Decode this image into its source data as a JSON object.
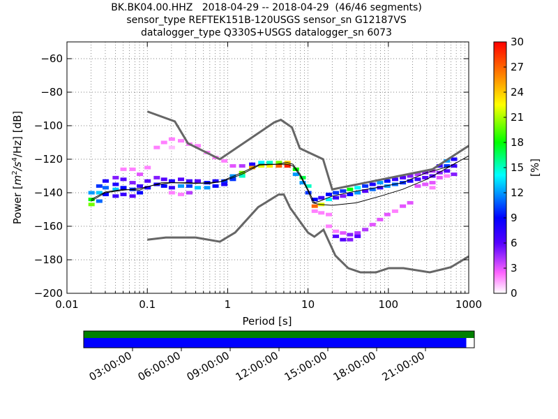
{
  "title_lines": [
    "BK.BK04.00.HHZ   2018-04-29 -- 2018-04-29  (46/46 segments)",
    "sensor_type REFTEK151B-120USGS sensor_sn G12187VS",
    "datalogger_type Q330S+USGS datalogger_sn 6073"
  ],
  "chart_data": {
    "type": "heatmap",
    "xlabel": "Period [s]",
    "ylabel": "Power [m²/s⁴/Hz] [dB]",
    "ylabel_parts": {
      "pre": "Power [",
      "unit": "m",
      "exp1": "2",
      "mid": "/s",
      "exp2": "4",
      "post": "/Hz] [dB]"
    },
    "x_scale": "log",
    "xlim": [
      0.01,
      1000
    ],
    "ylim": [
      -200,
      -50
    ],
    "x_ticks": [
      0.01,
      0.1,
      1,
      10,
      100,
      1000
    ],
    "x_tick_labels": [
      "0.01",
      "0.1",
      "1",
      "10",
      "100",
      "1000"
    ],
    "y_ticks": [
      -200,
      -180,
      -160,
      -140,
      -120,
      -100,
      -80,
      -60
    ],
    "y_tick_labels": [
      "−200",
      "−180",
      "−160",
      "−140",
      "−120",
      "−100",
      "−80",
      "−60"
    ],
    "grid": true,
    "colorbar": {
      "label": "[%]",
      "range": [
        0,
        30
      ],
      "ticks": [
        0,
        3,
        6,
        9,
        12,
        15,
        18,
        21,
        24,
        27,
        30
      ],
      "tick_labels": [
        "0",
        "3",
        "6",
        "9",
        "12",
        "15",
        "18",
        "21",
        "24",
        "27",
        "30"
      ]
    },
    "noise_models": [
      {
        "points": [
          [
            0.1,
            -91.5
          ],
          [
            0.22,
            -97.4
          ],
          [
            0.32,
            -110.5
          ],
          [
            0.8,
            -120
          ],
          [
            3.8,
            -98
          ],
          [
            4.6,
            -96.5
          ],
          [
            6.3,
            -101
          ],
          [
            7.9,
            -113.5
          ],
          [
            15.4,
            -120
          ],
          [
            20,
            -138
          ],
          [
            354,
            -126
          ],
          [
            1000,
            -112
          ]
        ]
      },
      {
        "points": [
          [
            0.1,
            -168
          ],
          [
            0.17,
            -166.7
          ],
          [
            0.4,
            -166.7
          ],
          [
            0.8,
            -169.2
          ],
          [
            1.24,
            -163.7
          ],
          [
            2.4,
            -148.6
          ],
          [
            4.3,
            -141.1
          ],
          [
            5,
            -141.1
          ],
          [
            6,
            -149
          ],
          [
            10,
            -163.8
          ],
          [
            12,
            -166.2
          ],
          [
            15.6,
            -162.1
          ],
          [
            21.9,
            -177.5
          ],
          [
            31.6,
            -185
          ],
          [
            45,
            -187.5
          ],
          [
            70,
            -187.5
          ],
          [
            101,
            -185
          ],
          [
            154,
            -185
          ],
          [
            328,
            -187.5
          ],
          [
            600,
            -184.4
          ],
          [
            1000,
            -178
          ]
        ]
      }
    ],
    "mean_curve": {
      "color": "#000000",
      "points": [
        [
          0.02,
          -144
        ],
        [
          0.03,
          -139.5
        ],
        [
          0.05,
          -138
        ],
        [
          0.08,
          -138.5
        ],
        [
          0.1,
          -136.5
        ],
        [
          0.15,
          -134
        ],
        [
          0.3,
          -134
        ],
        [
          0.6,
          -134.5
        ],
        [
          0.9,
          -133
        ],
        [
          1.5,
          -129
        ],
        [
          2.5,
          -123.5
        ],
        [
          4,
          -123
        ],
        [
          5.5,
          -123
        ],
        [
          6.5,
          -124
        ],
        [
          8,
          -130
        ],
        [
          10,
          -139
        ],
        [
          11.5,
          -146
        ],
        [
          14,
          -147
        ],
        [
          20,
          -147.5
        ],
        [
          40,
          -146
        ],
        [
          80,
          -142
        ],
        [
          150,
          -138
        ],
        [
          300,
          -132
        ],
        [
          600,
          -124
        ],
        [
          1000,
          -118
        ]
      ]
    },
    "mode_curve": {
      "color": "#000000",
      "points": [
        [
          0.02,
          -145
        ],
        [
          0.03,
          -140
        ],
        [
          0.05,
          -138.5
        ],
        [
          0.08,
          -137.5
        ],
        [
          0.12,
          -135.5
        ],
        [
          0.2,
          -134
        ],
        [
          0.4,
          -134.5
        ],
        [
          0.8,
          -133.5
        ],
        [
          1.5,
          -128
        ],
        [
          2.5,
          -123
        ],
        [
          4,
          -123
        ],
        [
          5.5,
          -122
        ],
        [
          6.5,
          -123
        ],
        [
          8,
          -129
        ],
        [
          10,
          -138
        ],
        [
          12,
          -146
        ],
        [
          14,
          -145
        ],
        [
          20,
          -142
        ],
        [
          40,
          -139
        ],
        [
          80,
          -136.5
        ],
        [
          150,
          -134
        ],
        [
          300,
          -128
        ],
        [
          600,
          -124
        ],
        [
          700,
          -122
        ]
      ]
    },
    "pdf_cells": [
      {
        "x": 0.02,
        "y": -140,
        "p": 12
      },
      {
        "x": 0.02,
        "y": -144,
        "p": 18
      },
      {
        "x": 0.02,
        "y": -147,
        "p": 20
      },
      {
        "x": 0.025,
        "y": -136,
        "p": 10
      },
      {
        "x": 0.025,
        "y": -140,
        "p": 13
      },
      {
        "x": 0.025,
        "y": -145,
        "p": 11
      },
      {
        "x": 0.03,
        "y": -133,
        "p": 8
      },
      {
        "x": 0.03,
        "y": -137,
        "p": 11
      },
      {
        "x": 0.03,
        "y": -141,
        "p": 9
      },
      {
        "x": 0.04,
        "y": -131,
        "p": 5
      },
      {
        "x": 0.04,
        "y": -135,
        "p": 8
      },
      {
        "x": 0.04,
        "y": -138,
        "p": 13
      },
      {
        "x": 0.04,
        "y": -142,
        "p": 7
      },
      {
        "x": 0.05,
        "y": -126,
        "p": 2
      },
      {
        "x": 0.05,
        "y": -132,
        "p": 6
      },
      {
        "x": 0.05,
        "y": -137,
        "p": 9
      },
      {
        "x": 0.05,
        "y": -141,
        "p": 7
      },
      {
        "x": 0.065,
        "y": -126,
        "p": 2
      },
      {
        "x": 0.065,
        "y": -134,
        "p": 5
      },
      {
        "x": 0.065,
        "y": -138,
        "p": 10
      },
      {
        "x": 0.065,
        "y": -142,
        "p": 6
      },
      {
        "x": 0.08,
        "y": -129,
        "p": 3
      },
      {
        "x": 0.08,
        "y": -136,
        "p": 7
      },
      {
        "x": 0.08,
        "y": -140,
        "p": 9
      },
      {
        "x": 0.1,
        "y": -125,
        "p": 2
      },
      {
        "x": 0.1,
        "y": -133,
        "p": 6
      },
      {
        "x": 0.1,
        "y": -137,
        "p": 8
      },
      {
        "x": 0.13,
        "y": -113,
        "p": 2
      },
      {
        "x": 0.13,
        "y": -131,
        "p": 5
      },
      {
        "x": 0.13,
        "y": -135,
        "p": 8
      },
      {
        "x": 0.16,
        "y": -110,
        "p": 2
      },
      {
        "x": 0.16,
        "y": -132,
        "p": 6
      },
      {
        "x": 0.16,
        "y": -136,
        "p": 9
      },
      {
        "x": 0.2,
        "y": -108,
        "p": 2
      },
      {
        "x": 0.2,
        "y": -113,
        "p": 1
      },
      {
        "x": 0.2,
        "y": -133,
        "p": 8
      },
      {
        "x": 0.2,
        "y": -137,
        "p": 7
      },
      {
        "x": 0.2,
        "y": -140,
        "p": 2
      },
      {
        "x": 0.26,
        "y": -109,
        "p": 2
      },
      {
        "x": 0.26,
        "y": -132,
        "p": 6
      },
      {
        "x": 0.26,
        "y": -136,
        "p": 12
      },
      {
        "x": 0.26,
        "y": -141,
        "p": 2
      },
      {
        "x": 0.33,
        "y": -111,
        "p": 2
      },
      {
        "x": 0.33,
        "y": -133,
        "p": 7
      },
      {
        "x": 0.33,
        "y": -136,
        "p": 10
      },
      {
        "x": 0.33,
        "y": -140,
        "p": 4
      },
      {
        "x": 0.42,
        "y": -112,
        "p": 2
      },
      {
        "x": 0.42,
        "y": -133,
        "p": 6
      },
      {
        "x": 0.42,
        "y": -137,
        "p": 13
      },
      {
        "x": 0.55,
        "y": -116,
        "p": 2
      },
      {
        "x": 0.55,
        "y": -134,
        "p": 9
      },
      {
        "x": 0.55,
        "y": -137,
        "p": 12
      },
      {
        "x": 0.7,
        "y": -119,
        "p": 2
      },
      {
        "x": 0.7,
        "y": -133,
        "p": 8
      },
      {
        "x": 0.7,
        "y": -136,
        "p": 9
      },
      {
        "x": 0.9,
        "y": -121,
        "p": 2
      },
      {
        "x": 0.9,
        "y": -133,
        "p": 10
      },
      {
        "x": 0.9,
        "y": -135,
        "p": 8
      },
      {
        "x": 1.15,
        "y": -124,
        "p": 3
      },
      {
        "x": 1.15,
        "y": -130,
        "p": 12
      },
      {
        "x": 1.15,
        "y": -132,
        "p": 10
      },
      {
        "x": 1.5,
        "y": -124,
        "p": 4
      },
      {
        "x": 1.5,
        "y": -128,
        "p": 20
      },
      {
        "x": 1.5,
        "y": -130,
        "p": 15
      },
      {
        "x": 2,
        "y": -123,
        "p": 8
      },
      {
        "x": 2,
        "y": -125,
        "p": 25
      },
      {
        "x": 2.6,
        "y": -122,
        "p": 14
      },
      {
        "x": 2.6,
        "y": -124,
        "p": 22
      },
      {
        "x": 3.3,
        "y": -122,
        "p": 15
      },
      {
        "x": 3.3,
        "y": -124,
        "p": 23
      },
      {
        "x": 4.3,
        "y": -122,
        "p": 20
      },
      {
        "x": 4.3,
        "y": -124,
        "p": 27
      },
      {
        "x": 5.5,
        "y": -122,
        "p": 24
      },
      {
        "x": 5.5,
        "y": -124,
        "p": 29
      },
      {
        "x": 7,
        "y": -126,
        "p": 18
      },
      {
        "x": 7,
        "y": -129,
        "p": 12
      },
      {
        "x": 8.5,
        "y": -131,
        "p": 17
      },
      {
        "x": 8.5,
        "y": -134,
        "p": 12
      },
      {
        "x": 10,
        "y": -136,
        "p": 15
      },
      {
        "x": 10,
        "y": -140,
        "p": 10
      },
      {
        "x": 12,
        "y": -144,
        "p": 9
      },
      {
        "x": 12,
        "y": -148,
        "p": 27
      },
      {
        "x": 12,
        "y": -151,
        "p": 2
      },
      {
        "x": 14.5,
        "y": -143,
        "p": 7
      },
      {
        "x": 14.5,
        "y": -147,
        "p": 22
      },
      {
        "x": 14.5,
        "y": -152,
        "p": 2
      },
      {
        "x": 18,
        "y": -141,
        "p": 9
      },
      {
        "x": 18,
        "y": -144,
        "p": 14
      },
      {
        "x": 18,
        "y": -153,
        "p": 2
      },
      {
        "x": 18,
        "y": -160,
        "p": 2
      },
      {
        "x": 22,
        "y": -140,
        "p": 10
      },
      {
        "x": 22,
        "y": -143,
        "p": 7
      },
      {
        "x": 22,
        "y": -163,
        "p": 2
      },
      {
        "x": 22,
        "y": -166,
        "p": 6
      },
      {
        "x": 27,
        "y": -139,
        "p": 10
      },
      {
        "x": 27,
        "y": -142,
        "p": 5
      },
      {
        "x": 27,
        "y": -164,
        "p": 3
      },
      {
        "x": 27,
        "y": -168,
        "p": 6
      },
      {
        "x": 33,
        "y": -138,
        "p": 18
      },
      {
        "x": 33,
        "y": -141,
        "p": 9
      },
      {
        "x": 33,
        "y": -165,
        "p": 5
      },
      {
        "x": 33,
        "y": -168,
        "p": 5
      },
      {
        "x": 41,
        "y": -137,
        "p": 14
      },
      {
        "x": 41,
        "y": -140,
        "p": 12
      },
      {
        "x": 41,
        "y": -164,
        "p": 4
      },
      {
        "x": 41,
        "y": -166,
        "p": 6
      },
      {
        "x": 51,
        "y": -136,
        "p": 10
      },
      {
        "x": 51,
        "y": -139,
        "p": 6
      },
      {
        "x": 51,
        "y": -162,
        "p": 4
      },
      {
        "x": 63,
        "y": -135,
        "p": 8
      },
      {
        "x": 63,
        "y": -138,
        "p": 11
      },
      {
        "x": 63,
        "y": -159,
        "p": 3
      },
      {
        "x": 78,
        "y": -134,
        "p": 12
      },
      {
        "x": 78,
        "y": -137,
        "p": 7
      },
      {
        "x": 78,
        "y": -156,
        "p": 3
      },
      {
        "x": 96,
        "y": -133,
        "p": 9
      },
      {
        "x": 96,
        "y": -136,
        "p": 12
      },
      {
        "x": 96,
        "y": -153,
        "p": 3
      },
      {
        "x": 120,
        "y": -132,
        "p": 7
      },
      {
        "x": 120,
        "y": -135,
        "p": 11
      },
      {
        "x": 120,
        "y": -151,
        "p": 2
      },
      {
        "x": 150,
        "y": -131,
        "p": 6
      },
      {
        "x": 150,
        "y": -134,
        "p": 10
      },
      {
        "x": 150,
        "y": -148,
        "p": 3
      },
      {
        "x": 185,
        "y": -130,
        "p": 5
      },
      {
        "x": 185,
        "y": -133,
        "p": 8
      },
      {
        "x": 185,
        "y": -146,
        "p": 3
      },
      {
        "x": 230,
        "y": -129,
        "p": 4
      },
      {
        "x": 230,
        "y": -132,
        "p": 7
      },
      {
        "x": 230,
        "y": -136,
        "p": 3
      },
      {
        "x": 285,
        "y": -128,
        "p": 5
      },
      {
        "x": 285,
        "y": -131,
        "p": 6
      },
      {
        "x": 285,
        "y": -135,
        "p": 3
      },
      {
        "x": 350,
        "y": -127,
        "p": 4
      },
      {
        "x": 350,
        "y": -130,
        "p": 6
      },
      {
        "x": 350,
        "y": -134,
        "p": 3
      },
      {
        "x": 350,
        "y": -137,
        "p": 2
      },
      {
        "x": 430,
        "y": -124,
        "p": 7
      },
      {
        "x": 430,
        "y": -128,
        "p": 5
      },
      {
        "x": 430,
        "y": -131,
        "p": 3
      },
      {
        "x": 530,
        "y": -121,
        "p": 12
      },
      {
        "x": 530,
        "y": -124,
        "p": 10
      },
      {
        "x": 530,
        "y": -127,
        "p": 6
      },
      {
        "x": 530,
        "y": -130,
        "p": 2
      },
      {
        "x": 650,
        "y": -120,
        "p": 8
      },
      {
        "x": 650,
        "y": -124,
        "p": 7
      },
      {
        "x": 650,
        "y": -129,
        "p": 5
      }
    ],
    "coverage": {
      "data_fraction": 0.9795,
      "data_color": "#0000ff",
      "available_color": "#008000",
      "time_tick_labels": [
        "03:00:00",
        "06:00:00",
        "09:00:00",
        "12:00:00",
        "15:00:00",
        "18:00:00",
        "21:00:00"
      ],
      "time_tick_hours": [
        3,
        6,
        9,
        12,
        15,
        18,
        21
      ]
    }
  }
}
